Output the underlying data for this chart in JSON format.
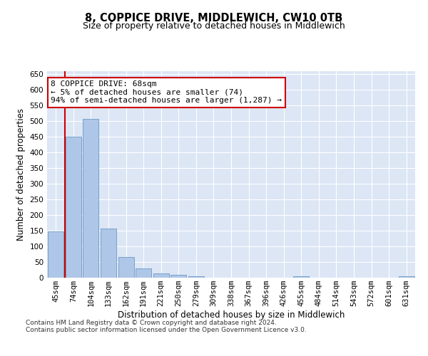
{
  "title": "8, COPPICE DRIVE, MIDDLEWICH, CW10 0TB",
  "subtitle": "Size of property relative to detached houses in Middlewich",
  "xlabel": "Distribution of detached houses by size in Middlewich",
  "ylabel": "Number of detached properties",
  "categories": [
    "45sqm",
    "74sqm",
    "104sqm",
    "133sqm",
    "162sqm",
    "191sqm",
    "221sqm",
    "250sqm",
    "279sqm",
    "309sqm",
    "338sqm",
    "367sqm",
    "396sqm",
    "426sqm",
    "455sqm",
    "484sqm",
    "514sqm",
    "543sqm",
    "572sqm",
    "601sqm",
    "631sqm"
  ],
  "values": [
    148,
    450,
    507,
    158,
    65,
    30,
    13,
    8,
    5,
    0,
    0,
    0,
    0,
    0,
    5,
    0,
    0,
    0,
    0,
    0,
    5
  ],
  "bar_color": "#aec6e8",
  "bar_edge_color": "#5b8db8",
  "highlight_color": "#cc0000",
  "annotation_line1": "8 COPPICE DRIVE: 68sqm",
  "annotation_line2": "← 5% of detached houses are smaller (74)",
  "annotation_line3": "94% of semi-detached houses are larger (1,287) →",
  "annotation_box_color": "#ffffff",
  "annotation_box_edge": "#cc0000",
  "ylim": [
    0,
    660
  ],
  "yticks": [
    0,
    50,
    100,
    150,
    200,
    250,
    300,
    350,
    400,
    450,
    500,
    550,
    600,
    650
  ],
  "bg_color": "#dce6f5",
  "fig_bg_color": "#ffffff",
  "footer_line1": "Contains HM Land Registry data © Crown copyright and database right 2024.",
  "footer_line2": "Contains public sector information licensed under the Open Government Licence v3.0.",
  "title_fontsize": 10.5,
  "subtitle_fontsize": 9,
  "xlabel_fontsize": 8.5,
  "ylabel_fontsize": 8.5,
  "tick_fontsize": 7.5,
  "annotation_fontsize": 8,
  "footer_fontsize": 6.5
}
